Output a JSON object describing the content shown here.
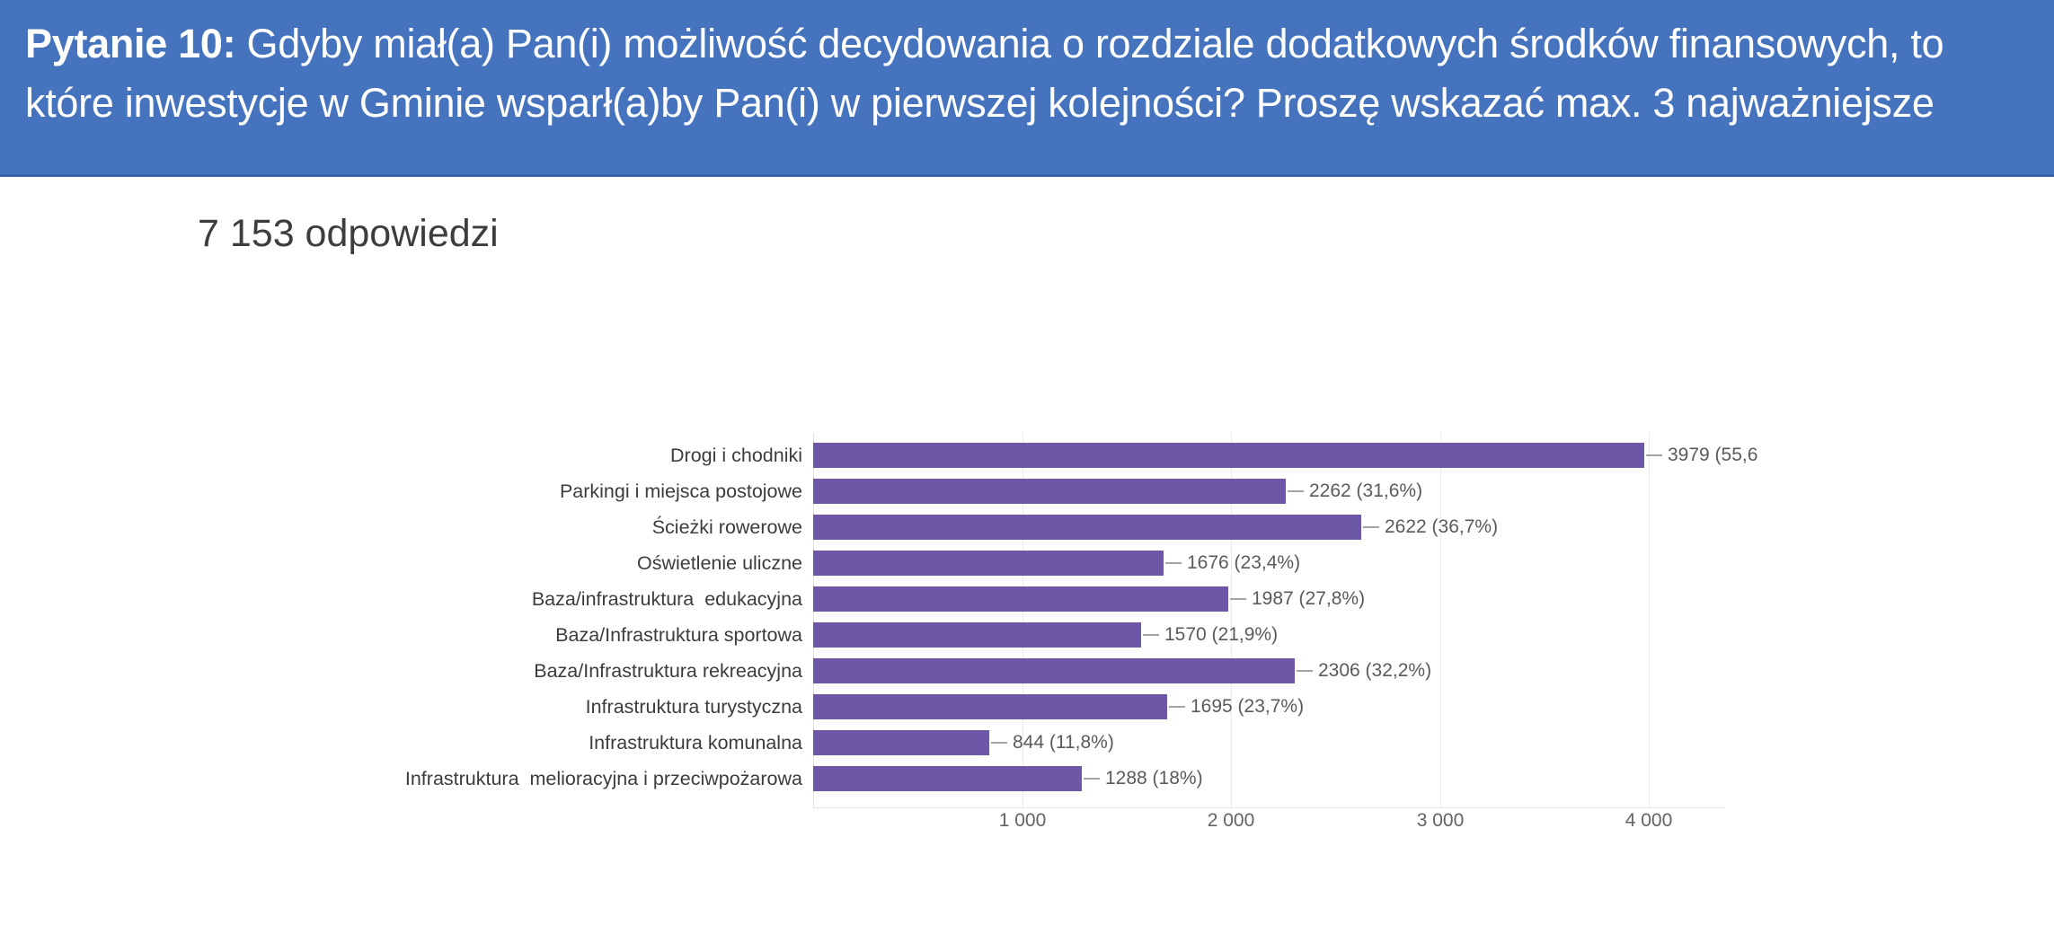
{
  "header": {
    "prefix_bold": "Pytanie 10:",
    "line1_rest": " Gdyby miał(a) Pan(i) możliwość decydowania o rozdziale dodatkowych środków finansowych, to",
    "line2": "które inwestycje w Gminie wsparł(a)by Pan(i) w pierwszej kolejności? Proszę wskazać max. 3 najważniejsze",
    "background_color": "#4573BE",
    "text_color": "#ffffff"
  },
  "responses_label": "7 153 odpowiedzi",
  "chart_data": {
    "type": "bar",
    "orientation": "horizontal",
    "title": "",
    "xlabel": "",
    "ylabel": "",
    "categories": [
      "Drogi i chodniki",
      "Parkingi i miejsca postojowe",
      "Ścieżki rowerowe",
      "Oświetlenie uliczne",
      "Baza/infrastruktura  edukacyjna",
      "Baza/Infrastruktura sportowa",
      "Baza/Infrastruktura rekreacyjna",
      "Infrastruktura turystyczna",
      "Infrastruktura komunalna",
      "Infrastruktura  melioracyjna i przeciwpożarowa"
    ],
    "values": [
      3979,
      2262,
      2622,
      1676,
      1987,
      1570,
      2306,
      1695,
      844,
      1288
    ],
    "percentages": [
      55.6,
      31.6,
      36.7,
      23.4,
      27.8,
      21.9,
      32.2,
      23.7,
      11.8,
      18
    ],
    "value_labels": [
      "3979 (55,6",
      "2262 (31,6%)",
      "2622 (36,7%)",
      "1676 (23,4%)",
      "1987 (27,8%)",
      "1570 (21,9%)",
      "2306 (32,2%)",
      "1695 (23,7%)",
      "844 (11,8%)",
      "1288 (18%)"
    ],
    "x_ticks": [
      1000,
      2000,
      3000,
      4000
    ],
    "x_tick_labels": [
      "1 000",
      "2 000",
      "3 000",
      "4 000"
    ],
    "xlim": [
      0,
      4370
    ],
    "grid": true,
    "legend": false,
    "bar_color": "#6D58A8",
    "gridline_color": "#ebebeb",
    "leader_line_color": "#a3a3a3"
  }
}
